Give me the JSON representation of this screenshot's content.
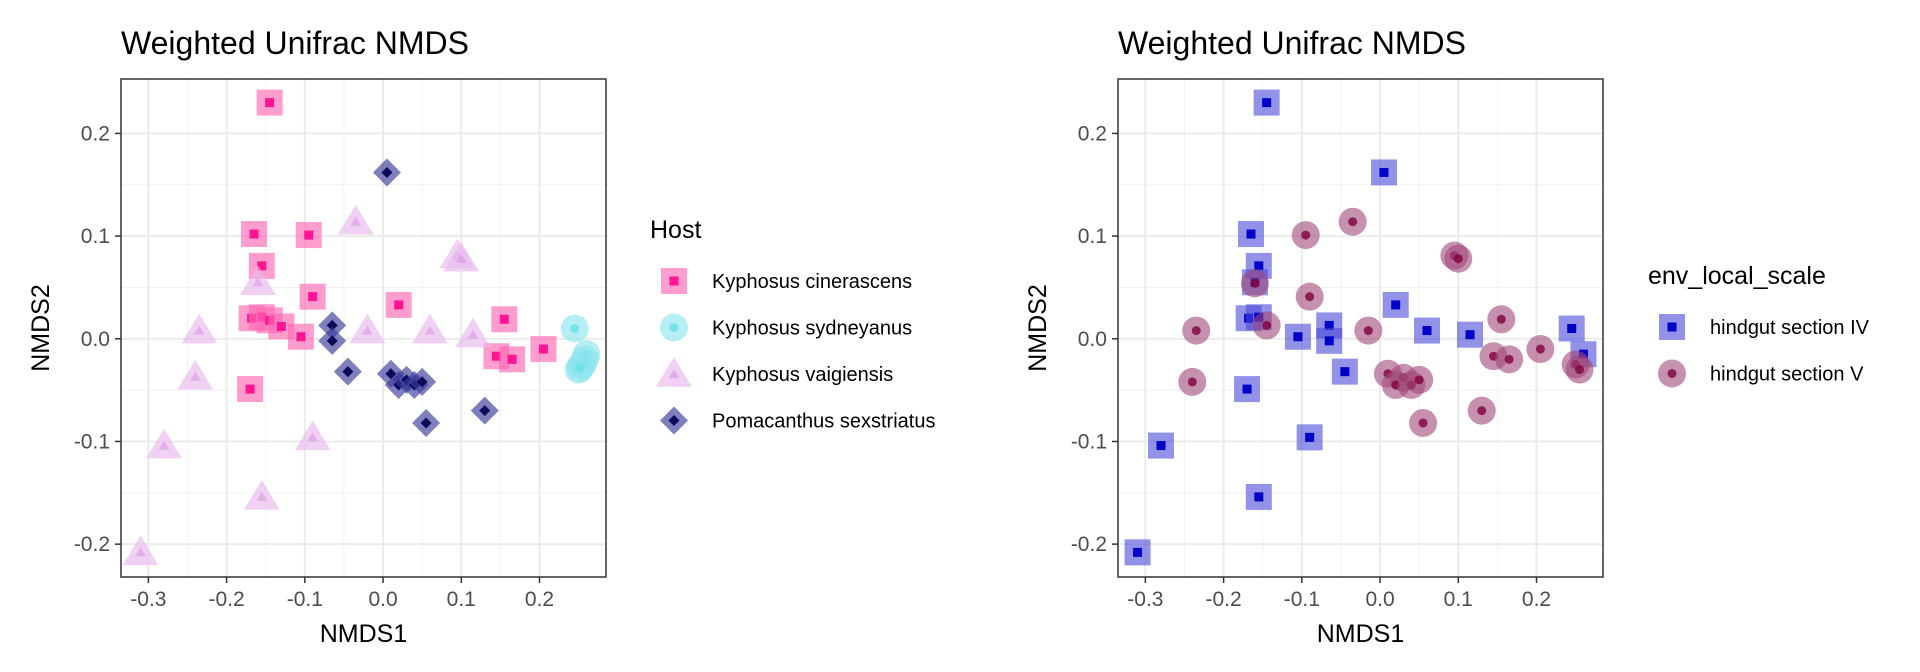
{
  "chart_data": [
    {
      "type": "scatter",
      "title": "Weighted Unifrac NMDS",
      "xlabel": "NMDS1",
      "ylabel": "NMDS2",
      "xlim": [
        -0.335,
        0.285
      ],
      "ylim": [
        -0.232,
        0.253
      ],
      "xticks": [
        -0.3,
        -0.2,
        -0.1,
        0.0,
        0.1,
        0.2
      ],
      "yticks": [
        -0.2,
        -0.1,
        0.0,
        0.1,
        0.2
      ],
      "xtick_labels": [
        "-0.3",
        "-0.2",
        "-0.1",
        "0.0",
        "0.1",
        "0.2"
      ],
      "ytick_labels": [
        "-0.2",
        "-0.1",
        "0.0",
        "0.1",
        "0.2"
      ],
      "grid": true,
      "legend": {
        "title": "Host",
        "placement": "right",
        "entries": [
          "Kyphosus cinerascens",
          "Kyphosus sydneyanus",
          "Kyphosus vaigiensis",
          "Pomacanthus sexstriatus"
        ]
      },
      "series": [
        {
          "name": "Kyphosus cinerascens",
          "shape": "square",
          "fill": "#ff69b4",
          "inner": "#ff1493",
          "points": [
            [
              -0.145,
              0.23
            ],
            [
              -0.165,
              0.102
            ],
            [
              -0.095,
              0.101
            ],
            [
              -0.155,
              0.071
            ],
            [
              -0.09,
              0.041
            ],
            [
              -0.168,
              0.02
            ],
            [
              -0.155,
              0.021
            ],
            [
              -0.145,
              0.018
            ],
            [
              -0.13,
              0.012
            ],
            [
              -0.105,
              0.002
            ],
            [
              -0.17,
              -0.049
            ],
            [
              0.02,
              0.033
            ],
            [
              0.155,
              0.019
            ],
            [
              0.145,
              -0.017
            ],
            [
              0.165,
              -0.02
            ],
            [
              0.205,
              -0.01
            ]
          ]
        },
        {
          "name": "Kyphosus sydneyanus",
          "shape": "circle",
          "fill": "#8ee5ee",
          "inner": "#66e0e6",
          "points": [
            [
              0.245,
              0.01
            ],
            [
              0.26,
              -0.015
            ],
            [
              0.255,
              -0.025
            ],
            [
              0.25,
              -0.03
            ],
            [
              0.258,
              -0.02
            ],
            [
              0.252,
              -0.028
            ]
          ]
        },
        {
          "name": "Kyphosus vaigiensis",
          "shape": "triangle",
          "fill": "#e8b8ee",
          "inner": "#d89ae0",
          "points": [
            [
              -0.035,
              0.114
            ],
            [
              0.095,
              0.081
            ],
            [
              0.1,
              0.078
            ],
            [
              -0.16,
              0.055
            ],
            [
              -0.235,
              0.008
            ],
            [
              -0.02,
              0.008
            ],
            [
              0.06,
              0.008
            ],
            [
              0.115,
              0.004
            ],
            [
              -0.24,
              -0.037
            ],
            [
              -0.28,
              -0.104
            ],
            [
              -0.09,
              -0.096
            ],
            [
              -0.155,
              -0.154
            ],
            [
              -0.31,
              -0.208
            ]
          ]
        },
        {
          "name": "Pomacanthus sexstriatus",
          "shape": "diamond",
          "fill": "#3a3a9a",
          "inner": "#0b0b5a",
          "points": [
            [
              0.005,
              0.162
            ],
            [
              -0.065,
              0.013
            ],
            [
              -0.065,
              -0.002
            ],
            [
              -0.045,
              -0.032
            ],
            [
              0.01,
              -0.034
            ],
            [
              0.02,
              -0.045
            ],
            [
              0.03,
              -0.04
            ],
            [
              0.04,
              -0.045
            ],
            [
              0.05,
              -0.042
            ],
            [
              0.055,
              -0.082
            ],
            [
              0.13,
              -0.07
            ]
          ]
        }
      ]
    },
    {
      "type": "scatter",
      "title": "Weighted Unifrac NMDS",
      "xlabel": "NMDS1",
      "ylabel": "NMDS2",
      "xlim": [
        -0.335,
        0.285
      ],
      "ylim": [
        -0.232,
        0.253
      ],
      "xticks": [
        -0.3,
        -0.2,
        -0.1,
        0.0,
        0.1,
        0.2
      ],
      "yticks": [
        -0.2,
        -0.1,
        0.0,
        0.1,
        0.2
      ],
      "xtick_labels": [
        "-0.3",
        "-0.2",
        "-0.1",
        "0.0",
        "0.1",
        "0.2"
      ],
      "ytick_labels": [
        "-0.2",
        "-0.1",
        "0.0",
        "0.1",
        "0.2"
      ],
      "grid": true,
      "legend": {
        "title": "env_local_scale",
        "placement": "right",
        "entries": [
          "hindgut section IV",
          "hindgut section V"
        ]
      },
      "series": [
        {
          "name": "hindgut section IV",
          "shape": "square",
          "fill": "#4a4ad8",
          "inner": "#0000c8",
          "points": [
            [
              -0.145,
              0.23
            ],
            [
              0.005,
              0.162
            ],
            [
              -0.165,
              0.102
            ],
            [
              -0.155,
              0.071
            ],
            [
              -0.16,
              0.055
            ],
            [
              0.02,
              0.033
            ],
            [
              -0.168,
              0.02
            ],
            [
              -0.155,
              0.021
            ],
            [
              -0.105,
              0.002
            ],
            [
              -0.065,
              0.013
            ],
            [
              -0.065,
              -0.002
            ],
            [
              0.06,
              0.008
            ],
            [
              0.115,
              0.004
            ],
            [
              0.245,
              0.01
            ],
            [
              0.26,
              -0.015
            ],
            [
              -0.045,
              -0.032
            ],
            [
              -0.17,
              -0.049
            ],
            [
              -0.09,
              -0.096
            ],
            [
              -0.28,
              -0.104
            ],
            [
              -0.155,
              -0.154
            ],
            [
              -0.31,
              -0.208
            ]
          ]
        },
        {
          "name": "hindgut section V",
          "shape": "circle",
          "fill": "#a04878",
          "inner": "#800040",
          "points": [
            [
              -0.035,
              0.114
            ],
            [
              -0.095,
              0.101
            ],
            [
              0.095,
              0.081
            ],
            [
              0.1,
              0.078
            ],
            [
              -0.09,
              0.041
            ],
            [
              -0.16,
              0.054
            ],
            [
              -0.145,
              0.013
            ],
            [
              -0.235,
              0.008
            ],
            [
              -0.015,
              0.008
            ],
            [
              0.155,
              0.019
            ],
            [
              0.01,
              -0.034
            ],
            [
              0.03,
              -0.038
            ],
            [
              0.02,
              -0.045
            ],
            [
              0.04,
              -0.045
            ],
            [
              0.05,
              -0.04
            ],
            [
              0.055,
              -0.082
            ],
            [
              0.13,
              -0.07
            ],
            [
              0.145,
              -0.017
            ],
            [
              0.165,
              -0.02
            ],
            [
              0.205,
              -0.01
            ],
            [
              0.25,
              -0.025
            ],
            [
              0.255,
              -0.03
            ],
            [
              -0.24,
              -0.042
            ]
          ]
        }
      ]
    }
  ]
}
